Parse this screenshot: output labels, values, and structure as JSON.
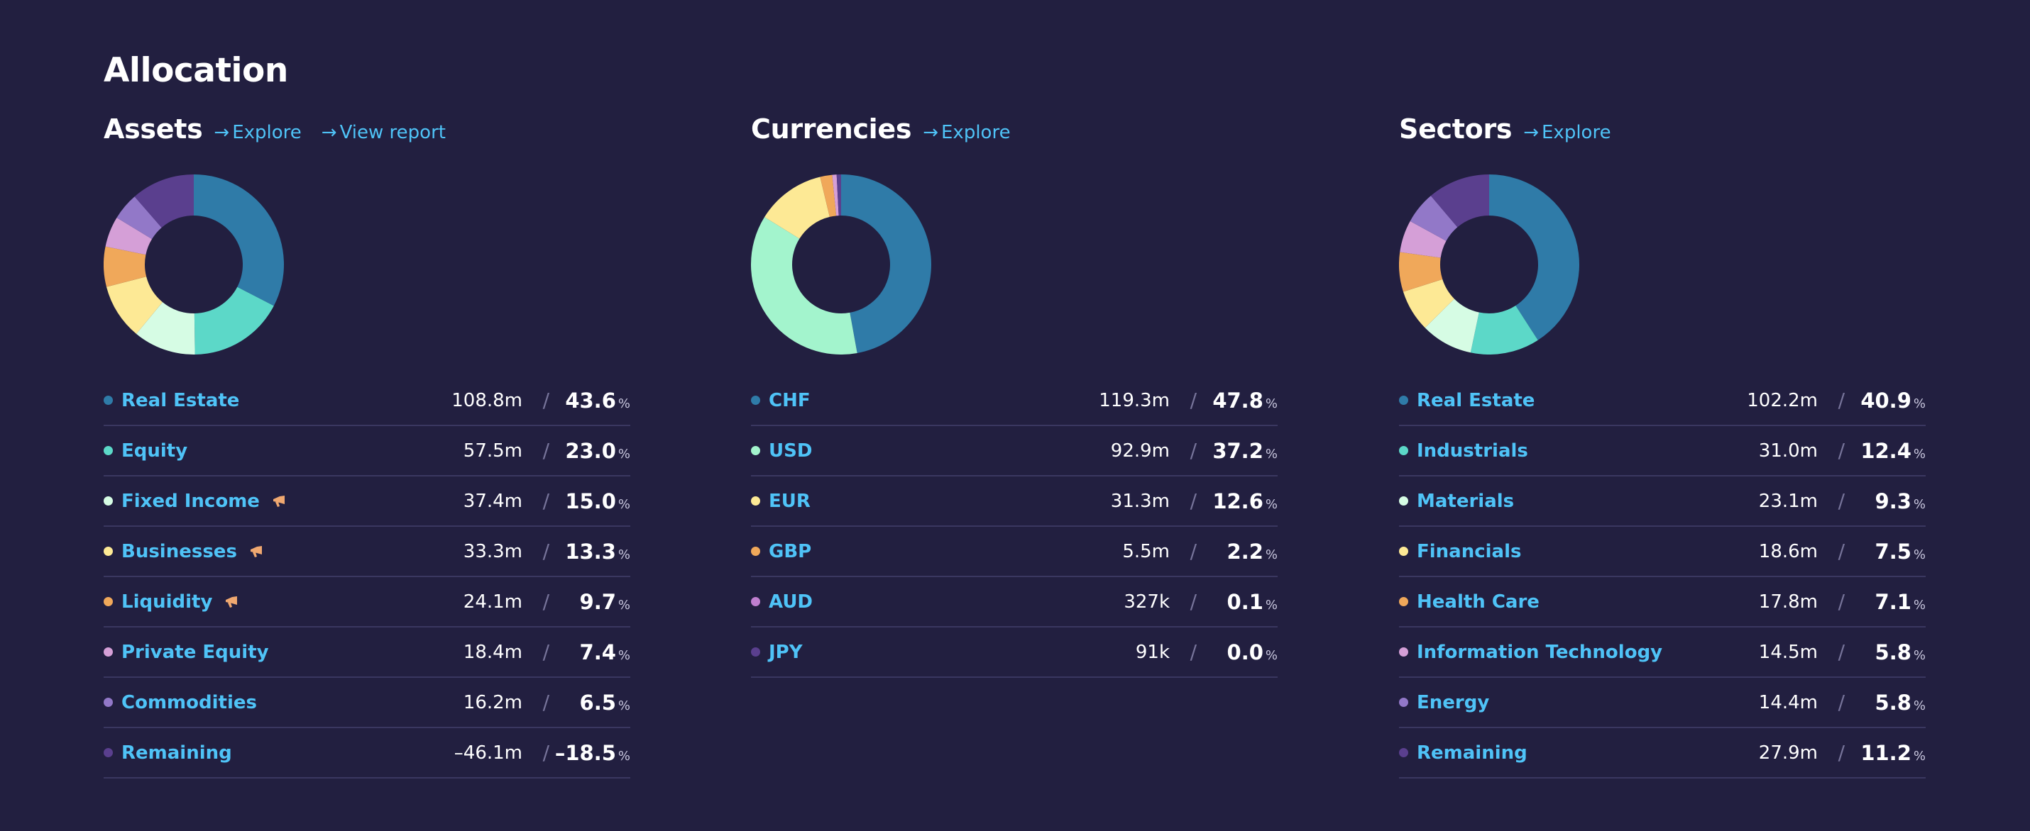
{
  "page": {
    "title": "Allocation"
  },
  "colors": {
    "background": "#221f40",
    "link": "#4fc3f7",
    "divider": "#3a3760",
    "palette": [
      "#2f7ba8",
      "#5cd8c8",
      "#d6fce4",
      "#fde995",
      "#f0a85a",
      "#d59fd7",
      "#9278c8",
      "#5a3f8e"
    ]
  },
  "sections": [
    {
      "title": "Assets",
      "links": [
        {
          "label": "Explore",
          "icon": "arrow-right-icon"
        },
        {
          "label": "View report",
          "icon": "arrow-right-icon"
        }
      ],
      "donut": [
        {
          "value": 32.6,
          "color": "#2f7ba8"
        },
        {
          "value": 17.2,
          "color": "#5cd8c8"
        },
        {
          "value": 11.2,
          "color": "#d6fce4"
        },
        {
          "value": 10.0,
          "color": "#fde995"
        },
        {
          "value": 7.2,
          "color": "#f0a85a"
        },
        {
          "value": 5.5,
          "color": "#d59fd7"
        },
        {
          "value": 4.9,
          "color": "#9278c8"
        },
        {
          "value": 11.4,
          "color": "#5a3f8e"
        }
      ],
      "rows": [
        {
          "label": "Real Estate",
          "amount": "108.8m",
          "pct": "43.6",
          "color": "#2f7ba8",
          "flag": false
        },
        {
          "label": "Equity",
          "amount": "57.5m",
          "pct": "23.0",
          "color": "#5cd8c8",
          "flag": false
        },
        {
          "label": "Fixed Income",
          "amount": "37.4m",
          "pct": "15.0",
          "color": "#d6fce4",
          "flag": true
        },
        {
          "label": "Businesses",
          "amount": "33.3m",
          "pct": "13.3",
          "color": "#fde995",
          "flag": true
        },
        {
          "label": "Liquidity",
          "amount": "24.1m",
          "pct": "9.7",
          "color": "#f0a85a",
          "flag": true
        },
        {
          "label": "Private Equity",
          "amount": "18.4m",
          "pct": "7.4",
          "color": "#d59fd7",
          "flag": false
        },
        {
          "label": "Commodities",
          "amount": "16.2m",
          "pct": "6.5",
          "color": "#9278c8",
          "flag": false
        },
        {
          "label": "Remaining",
          "amount": "–46.1m",
          "pct": "–18.5",
          "color": "#5a3f8e",
          "flag": false
        }
      ]
    },
    {
      "title": "Currencies",
      "links": [
        {
          "label": "Explore",
          "icon": "arrow-right-icon"
        }
      ],
      "donut": [
        {
          "value": 47.8,
          "color": "#2f7ba8"
        },
        {
          "value": 37.2,
          "color": "#a3f4cd"
        },
        {
          "value": 12.6,
          "color": "#fde995"
        },
        {
          "value": 2.2,
          "color": "#f0a85a"
        },
        {
          "value": 0.8,
          "color": "#d59fd7"
        },
        {
          "value": 0.8,
          "color": "#5a3f8e"
        }
      ],
      "rows": [
        {
          "label": "CHF",
          "amount": "119.3m",
          "pct": "47.8",
          "color": "#2f7ba8",
          "flag": false
        },
        {
          "label": "USD",
          "amount": "92.9m",
          "pct": "37.2",
          "color": "#a3f4cd",
          "flag": false
        },
        {
          "label": "EUR",
          "amount": "31.3m",
          "pct": "12.6",
          "color": "#fde995",
          "flag": false
        },
        {
          "label": "GBP",
          "amount": "5.5m",
          "pct": "2.2",
          "color": "#f0a85a",
          "flag": false
        },
        {
          "label": "AUD",
          "amount": "327k",
          "pct": "0.1",
          "color": "#c07fd0",
          "flag": false
        },
        {
          "label": "JPY",
          "amount": "91k",
          "pct": "0.0",
          "color": "#5a3f8e",
          "flag": false
        }
      ]
    },
    {
      "title": "Sectors",
      "links": [
        {
          "label": "Explore",
          "icon": "arrow-right-icon"
        }
      ],
      "donut": [
        {
          "value": 40.9,
          "color": "#2f7ba8"
        },
        {
          "value": 12.4,
          "color": "#5cd8c8"
        },
        {
          "value": 9.3,
          "color": "#d6fce4"
        },
        {
          "value": 7.5,
          "color": "#fde995"
        },
        {
          "value": 7.1,
          "color": "#f0a85a"
        },
        {
          "value": 5.8,
          "color": "#d59fd7"
        },
        {
          "value": 5.8,
          "color": "#9278c8"
        },
        {
          "value": 11.2,
          "color": "#5a3f8e"
        }
      ],
      "rows": [
        {
          "label": "Real Estate",
          "amount": "102.2m",
          "pct": "40.9",
          "color": "#2f7ba8",
          "flag": false
        },
        {
          "label": "Industrials",
          "amount": "31.0m",
          "pct": "12.4",
          "color": "#5cd8c8",
          "flag": false
        },
        {
          "label": "Materials",
          "amount": "23.1m",
          "pct": "9.3",
          "color": "#d6fce4",
          "flag": false
        },
        {
          "label": "Financials",
          "amount": "18.6m",
          "pct": "7.5",
          "color": "#fde995",
          "flag": false
        },
        {
          "label": "Health Care",
          "amount": "17.8m",
          "pct": "7.1",
          "color": "#f0a85a",
          "flag": false
        },
        {
          "label": "Information Technology",
          "amount": "14.5m",
          "pct": "5.8",
          "color": "#d59fd7",
          "flag": false
        },
        {
          "label": "Energy",
          "amount": "14.4m",
          "pct": "5.8",
          "color": "#9278c8",
          "flag": false
        },
        {
          "label": "Remaining",
          "amount": "27.9m",
          "pct": "11.2",
          "color": "#5a3f8e",
          "flag": false
        }
      ]
    }
  ],
  "labels": {
    "separator": "/",
    "percent_sign": "%",
    "arrow": "→"
  },
  "flag_color": "#f0a870"
}
